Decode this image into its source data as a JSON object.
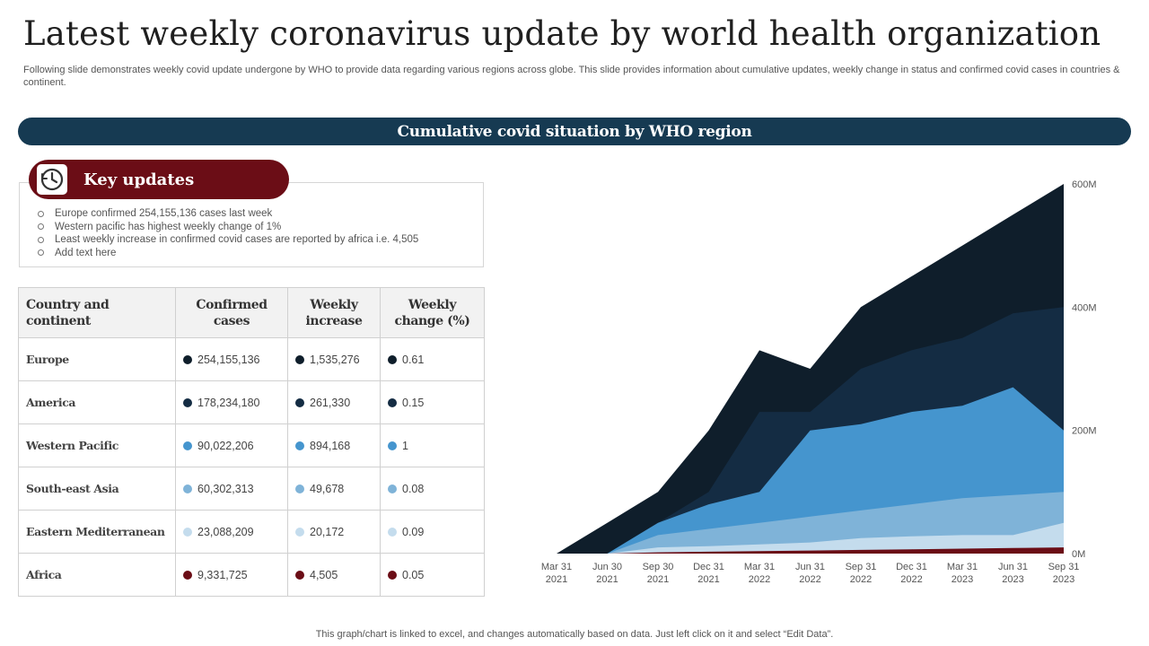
{
  "title": "Latest weekly coronavirus update by world health organization",
  "subtitle": "Following slide demonstrates weekly covid update undergone by WHO to provide data regarding various regions across globe. This slide provides information about cumulative updates, weekly change in status and confirmed covid cases in countries & continent.",
  "banner": "Cumulative covid situation by WHO region",
  "key_updates": {
    "icon": "clock-icon",
    "title": "Key updates",
    "items": [
      "Europe confirmed 254,155,136 cases last week",
      "Western pacific has highest weekly change of 1%",
      "Least weekly increase in confirmed covid cases are reported by africa i.e.  4,505",
      "Add text here"
    ]
  },
  "table": {
    "headers": [
      "Country and continent",
      "Confirmed cases",
      "Weekly increase",
      "Weekly change (%)"
    ],
    "rows": [
      {
        "region": "Europe",
        "confirmed": "254,155,136",
        "increase": "1,535,276",
        "change": "0.61",
        "color": "#0f1e2b"
      },
      {
        "region": "America",
        "confirmed": "178,234,180",
        "increase": "261,330",
        "change": "0.15",
        "color": "#142c43"
      },
      {
        "region": "Western Pacific",
        "confirmed": "90,022,206",
        "increase": "894,168",
        "change": "1",
        "color": "#4595ce"
      },
      {
        "region": "South-east Asia",
        "confirmed": "60,302,313",
        "increase": "49,678",
        "change": "0.08",
        "color": "#7fb3d8"
      },
      {
        "region": "Eastern Mediterranean",
        "confirmed": "23,088,209",
        "increase": "20,172",
        "change": "0.09",
        "color": "#c4dced"
      },
      {
        "region": "Africa",
        "confirmed": "9,331,725",
        "increase": "4,505",
        "change": "0.05",
        "color": "#6b0d16"
      }
    ]
  },
  "chart_data": {
    "type": "area",
    "stacked": false,
    "x": [
      "Mar 31\n2021",
      "Jun 30\n2021",
      "Sep 30\n2021",
      "Dec 31\n2021",
      "Mar 31\n2022",
      "Jun 31\n2022",
      "Sep 31\n2022",
      "Dec 31\n2022",
      "Mar 31\n2023",
      "Jun 31\n2023",
      "Sep 31\n2023"
    ],
    "y_ticks": [
      "0M",
      "200M",
      "400M",
      "600M"
    ],
    "ylim": [
      0,
      600
    ],
    "y_unit": "M",
    "y_axis_position": "right",
    "series": [
      {
        "name": "Europe",
        "color": "#0f1e2b",
        "values": [
          0,
          50,
          100,
          200,
          330,
          300,
          400,
          450,
          500,
          550,
          600
        ]
      },
      {
        "name": "America",
        "color": "#142c43",
        "values": [
          0,
          0,
          50,
          100,
          230,
          230,
          300,
          330,
          350,
          390,
          400
        ]
      },
      {
        "name": "Western Pacific",
        "color": "#4595ce",
        "values": [
          0,
          0,
          50,
          80,
          100,
          200,
          210,
          230,
          240,
          270,
          200
        ]
      },
      {
        "name": "South-east Asia",
        "color": "#7fb3d8",
        "values": [
          0,
          0,
          30,
          40,
          50,
          60,
          70,
          80,
          90,
          95,
          100
        ]
      },
      {
        "name": "Eastern Mediterranean",
        "color": "#c4dced",
        "values": [
          0,
          0,
          10,
          12,
          15,
          18,
          25,
          28,
          30,
          30,
          50
        ]
      },
      {
        "name": "Africa",
        "color": "#6b0d16",
        "values": [
          0,
          0,
          2,
          3,
          4,
          5,
          6,
          7,
          8,
          9,
          10
        ]
      }
    ]
  },
  "footer": "This graph/chart is linked to excel,  and changes automatically based on data. Just left click on it and select “Edit Data”."
}
